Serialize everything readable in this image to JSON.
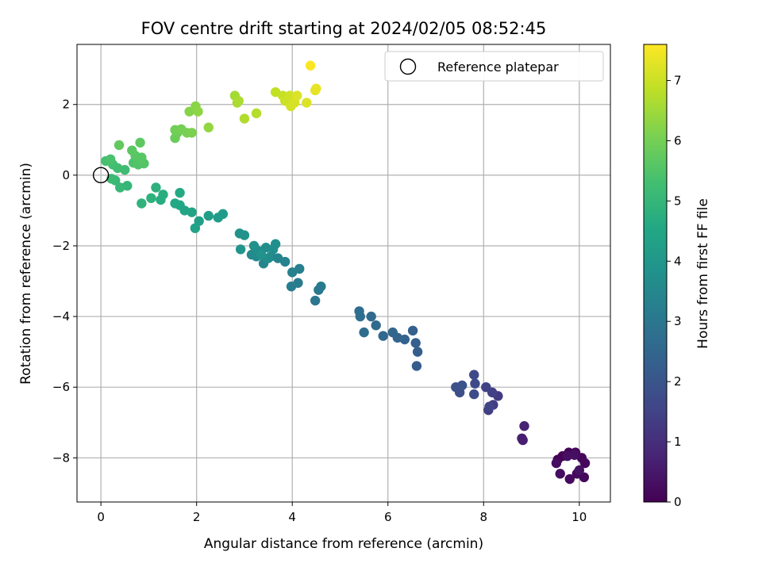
{
  "chart_data": {
    "type": "scatter",
    "title": "FOV centre drift starting at 2024/02/05 08:52:45",
    "xlabel": "Angular distance from reference (arcmin)",
    "ylabel": "Rotation from reference (arcmin)",
    "xlim": [
      -0.5,
      10.65
    ],
    "ylim": [
      -9.25,
      3.7
    ],
    "xticks": [
      0,
      2,
      4,
      6,
      8,
      10
    ],
    "yticks": [
      2,
      0,
      -2,
      -4,
      -6,
      -8
    ],
    "grid": true,
    "legend": {
      "placement": "top-right",
      "entries": [
        "Reference platepar"
      ]
    },
    "reference_point": {
      "name": "Reference platepar",
      "x": 0,
      "y": 0,
      "marker": "open-circle"
    },
    "colorbar": {
      "label": "Hours from first FF file",
      "colormap": "viridis",
      "range": [
        0,
        7.6
      ],
      "ticks": [
        0,
        1,
        2,
        3,
        4,
        5,
        6,
        7
      ]
    },
    "points": [
      {
        "x": 9.55,
        "y": -8.05,
        "c": 0.02
      },
      {
        "x": 9.65,
        "y": -7.95,
        "c": 0.05
      },
      {
        "x": 9.78,
        "y": -7.85,
        "c": 0.08
      },
      {
        "x": 9.92,
        "y": -7.85,
        "c": 0.1
      },
      {
        "x": 10.05,
        "y": -8.0,
        "c": 0.13
      },
      {
        "x": 10.12,
        "y": -8.15,
        "c": 0.15
      },
      {
        "x": 10.1,
        "y": -8.55,
        "c": 0.18
      },
      {
        "x": 9.95,
        "y": -8.45,
        "c": 0.2
      },
      {
        "x": 9.8,
        "y": -8.6,
        "c": 0.22
      },
      {
        "x": 9.6,
        "y": -8.45,
        "c": 0.25
      },
      {
        "x": 9.52,
        "y": -8.15,
        "c": 0.28
      },
      {
        "x": 9.75,
        "y": -7.95,
        "c": 0.3
      },
      {
        "x": 9.9,
        "y": -7.92,
        "c": 0.33
      },
      {
        "x": 10.0,
        "y": -8.35,
        "c": 0.36
      },
      {
        "x": 8.8,
        "y": -7.45,
        "c": 0.6
      },
      {
        "x": 8.82,
        "y": -7.5,
        "c": 0.65
      },
      {
        "x": 8.85,
        "y": -7.1,
        "c": 0.75
      },
      {
        "x": 8.3,
        "y": -6.25,
        "c": 1.3
      },
      {
        "x": 8.2,
        "y": -6.5,
        "c": 1.35
      },
      {
        "x": 8.1,
        "y": -6.65,
        "c": 1.4
      },
      {
        "x": 8.18,
        "y": -6.15,
        "c": 1.45
      },
      {
        "x": 8.05,
        "y": -6.0,
        "c": 1.5
      },
      {
        "x": 8.12,
        "y": -6.55,
        "c": 1.55
      },
      {
        "x": 7.8,
        "y": -5.65,
        "c": 1.65
      },
      {
        "x": 7.82,
        "y": -5.9,
        "c": 1.7
      },
      {
        "x": 7.8,
        "y": -6.2,
        "c": 1.75
      },
      {
        "x": 7.5,
        "y": -6.15,
        "c": 1.8
      },
      {
        "x": 7.42,
        "y": -6.0,
        "c": 1.85
      },
      {
        "x": 7.55,
        "y": -5.95,
        "c": 1.9
      },
      {
        "x": 6.6,
        "y": -5.4,
        "c": 2.2
      },
      {
        "x": 6.62,
        "y": -5.0,
        "c": 2.25
      },
      {
        "x": 6.58,
        "y": -4.75,
        "c": 2.3
      },
      {
        "x": 6.52,
        "y": -4.4,
        "c": 2.35
      },
      {
        "x": 6.35,
        "y": -4.65,
        "c": 2.4
      },
      {
        "x": 6.2,
        "y": -4.6,
        "c": 2.45
      },
      {
        "x": 6.1,
        "y": -4.45,
        "c": 2.5
      },
      {
        "x": 5.9,
        "y": -4.55,
        "c": 2.55
      },
      {
        "x": 5.75,
        "y": -4.25,
        "c": 2.6
      },
      {
        "x": 5.65,
        "y": -4.0,
        "c": 2.65
      },
      {
        "x": 5.5,
        "y": -4.45,
        "c": 2.7
      },
      {
        "x": 5.4,
        "y": -3.85,
        "c": 2.75
      },
      {
        "x": 5.42,
        "y": -4.0,
        "c": 2.8
      },
      {
        "x": 4.48,
        "y": -3.55,
        "c": 3.0
      },
      {
        "x": 4.55,
        "y": -3.25,
        "c": 3.05
      },
      {
        "x": 4.6,
        "y": -3.15,
        "c": 3.1
      },
      {
        "x": 4.12,
        "y": -3.05,
        "c": 3.15
      },
      {
        "x": 3.98,
        "y": -3.15,
        "c": 3.2
      },
      {
        "x": 4.15,
        "y": -2.65,
        "c": 3.25
      },
      {
        "x": 4.0,
        "y": -2.75,
        "c": 3.3
      },
      {
        "x": 3.85,
        "y": -2.45,
        "c": 3.35
      },
      {
        "x": 3.7,
        "y": -2.35,
        "c": 3.4
      },
      {
        "x": 3.55,
        "y": -2.3,
        "c": 3.45
      },
      {
        "x": 3.4,
        "y": -2.5,
        "c": 3.5
      },
      {
        "x": 3.25,
        "y": -2.3,
        "c": 3.55
      },
      {
        "x": 3.15,
        "y": -2.25,
        "c": 3.6
      },
      {
        "x": 3.3,
        "y": -2.15,
        "c": 3.65
      },
      {
        "x": 3.45,
        "y": -2.05,
        "c": 3.7
      },
      {
        "x": 3.5,
        "y": -2.35,
        "c": 3.72
      },
      {
        "x": 3.6,
        "y": -2.1,
        "c": 3.75
      },
      {
        "x": 3.65,
        "y": -1.95,
        "c": 3.78
      },
      {
        "x": 3.2,
        "y": -2.0,
        "c": 3.8
      },
      {
        "x": 3.35,
        "y": -2.25,
        "c": 3.82
      },
      {
        "x": 3.0,
        "y": -1.7,
        "c": 3.85
      },
      {
        "x": 2.9,
        "y": -1.65,
        "c": 3.88
      },
      {
        "x": 2.92,
        "y": -2.1,
        "c": 3.9
      },
      {
        "x": 2.55,
        "y": -1.1,
        "c": 4.1
      },
      {
        "x": 2.45,
        "y": -1.2,
        "c": 4.15
      },
      {
        "x": 2.25,
        "y": -1.15,
        "c": 4.2
      },
      {
        "x": 2.05,
        "y": -1.3,
        "c": 4.3
      },
      {
        "x": 1.97,
        "y": -1.5,
        "c": 4.35
      },
      {
        "x": 1.9,
        "y": -1.05,
        "c": 4.4
      },
      {
        "x": 1.75,
        "y": -1.0,
        "c": 4.45
      },
      {
        "x": 1.65,
        "y": -0.85,
        "c": 4.5
      },
      {
        "x": 1.55,
        "y": -0.8,
        "c": 4.55
      },
      {
        "x": 1.65,
        "y": -0.5,
        "c": 4.6
      },
      {
        "x": 1.25,
        "y": -0.7,
        "c": 4.7
      },
      {
        "x": 1.3,
        "y": -0.55,
        "c": 4.75
      },
      {
        "x": 1.15,
        "y": -0.35,
        "c": 4.8
      },
      {
        "x": 1.05,
        "y": -0.65,
        "c": 4.85
      },
      {
        "x": 0.85,
        "y": -0.8,
        "c": 4.9
      },
      {
        "x": 0.55,
        "y": -0.3,
        "c": 5.0
      },
      {
        "x": 0.4,
        "y": -0.35,
        "c": 5.05
      },
      {
        "x": 0.3,
        "y": -0.15,
        "c": 5.1
      },
      {
        "x": 0.22,
        "y": -0.1,
        "c": 5.15
      },
      {
        "x": 0.5,
        "y": 0.15,
        "c": 5.2
      },
      {
        "x": 0.35,
        "y": 0.2,
        "c": 5.25
      },
      {
        "x": 0.25,
        "y": 0.3,
        "c": 5.3
      },
      {
        "x": 0.1,
        "y": 0.4,
        "c": 5.35
      },
      {
        "x": 0.2,
        "y": 0.45,
        "c": 5.4
      },
      {
        "x": 0.68,
        "y": 0.35,
        "c": 5.45
      },
      {
        "x": 0.78,
        "y": 0.3,
        "c": 5.5
      },
      {
        "x": 0.9,
        "y": 0.33,
        "c": 5.55
      },
      {
        "x": 0.72,
        "y": 0.55,
        "c": 5.6
      },
      {
        "x": 0.85,
        "y": 0.5,
        "c": 5.62
      },
      {
        "x": 0.65,
        "y": 0.7,
        "c": 5.65
      },
      {
        "x": 0.82,
        "y": 0.92,
        "c": 5.7
      },
      {
        "x": 0.38,
        "y": 0.85,
        "c": 5.75
      },
      {
        "x": 1.55,
        "y": 1.05,
        "c": 5.85
      },
      {
        "x": 1.6,
        "y": 1.2,
        "c": 5.9
      },
      {
        "x": 1.55,
        "y": 1.28,
        "c": 5.95
      },
      {
        "x": 1.68,
        "y": 1.3,
        "c": 6.0
      },
      {
        "x": 1.8,
        "y": 1.2,
        "c": 6.05
      },
      {
        "x": 1.9,
        "y": 1.2,
        "c": 6.1
      },
      {
        "x": 1.85,
        "y": 1.8,
        "c": 6.2
      },
      {
        "x": 1.98,
        "y": 1.95,
        "c": 6.25
      },
      {
        "x": 2.03,
        "y": 1.8,
        "c": 6.3
      },
      {
        "x": 2.25,
        "y": 1.35,
        "c": 6.35
      },
      {
        "x": 2.8,
        "y": 2.25,
        "c": 6.55
      },
      {
        "x": 2.85,
        "y": 2.05,
        "c": 6.6
      },
      {
        "x": 2.88,
        "y": 2.1,
        "c": 6.65
      },
      {
        "x": 3.0,
        "y": 1.6,
        "c": 6.7
      },
      {
        "x": 3.25,
        "y": 1.75,
        "c": 6.75
      },
      {
        "x": 3.65,
        "y": 2.35,
        "c": 6.9
      },
      {
        "x": 3.8,
        "y": 2.25,
        "c": 6.95
      },
      {
        "x": 3.85,
        "y": 2.1,
        "c": 7.0
      },
      {
        "x": 3.95,
        "y": 2.25,
        "c": 7.05
      },
      {
        "x": 3.97,
        "y": 1.95,
        "c": 7.1
      },
      {
        "x": 4.05,
        "y": 2.05,
        "c": 7.15
      },
      {
        "x": 4.1,
        "y": 2.25,
        "c": 7.18
      },
      {
        "x": 4.3,
        "y": 2.05,
        "c": 7.2
      },
      {
        "x": 4.48,
        "y": 2.4,
        "c": 7.3
      },
      {
        "x": 4.5,
        "y": 2.45,
        "c": 7.35
      },
      {
        "x": 4.38,
        "y": 3.1,
        "c": 7.55
      }
    ]
  }
}
